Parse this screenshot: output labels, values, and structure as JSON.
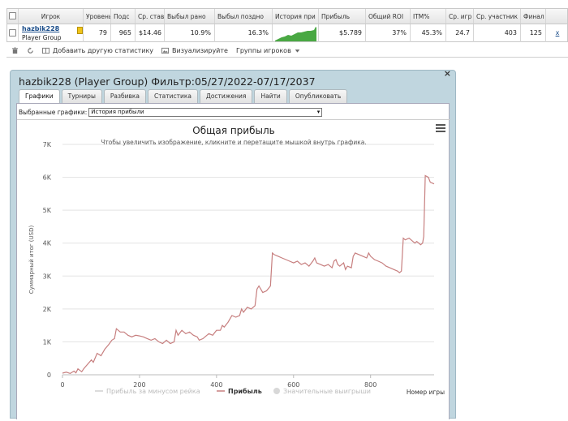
{
  "table": {
    "headers": [
      "Игрок",
      "Уровень",
      "Подс",
      "Ср. став",
      "Выбыл рано",
      "Выбыл поздно",
      "История при",
      "Прибыль",
      "Общий ROI",
      "ITM%",
      "Ср. игр",
      "Ср. участник",
      "Финал"
    ],
    "row": {
      "player_name": "hazbik228",
      "player_group": "Player Group",
      "level": "79",
      "count": "965",
      "avg_stake": "$14.46",
      "early": "10.9%",
      "late": "16.3%",
      "profit": "$5.789",
      "roi": "37%",
      "itm": "45.3%",
      "avg_games": "24.7",
      "avg_participants": "403",
      "final": "125",
      "remove": "x"
    }
  },
  "toolbar": {
    "add_stat": "Добавить другую статистику",
    "visualize": "Визуализируйте",
    "player_groups": "Группы игроков"
  },
  "panel": {
    "title": "hazbik228 (Player Group) Фильтр:05/27/2022-07/17/2037",
    "close": "×",
    "tabs": [
      "Графики",
      "Турниры",
      "Разбивка",
      "Статистика",
      "Достижения",
      "Найти",
      "Опубликовать"
    ],
    "select_label": "Выбранные графики:",
    "select_value": "История прибыли"
  },
  "chart_data": {
    "type": "line",
    "title": "Общая прибыль",
    "subtitle": "Чтобы увеличить изображение, кликните и перетащите мышкой внутрь графика.",
    "xlabel": "Номер игры",
    "ylabel": "Суммарный итог (USD)",
    "xlim": [
      0,
      965
    ],
    "ylim": [
      0,
      7000
    ],
    "x_ticks": [
      "0",
      "200",
      "400",
      "600",
      "800"
    ],
    "y_ticks": [
      "0",
      "1K",
      "2K",
      "3K",
      "4K",
      "5K",
      "6K",
      "7K"
    ],
    "legend": [
      "Прибыль за минусом рейка",
      "Прибыль",
      "Значительные выигрыши"
    ],
    "legend_placement": "bottom",
    "color": "#c77f7f",
    "series": [
      {
        "name": "Прибыль",
        "points": [
          [
            0,
            50
          ],
          [
            10,
            80
          ],
          [
            20,
            40
          ],
          [
            30,
            110
          ],
          [
            35,
            60
          ],
          [
            40,
            180
          ],
          [
            50,
            90
          ],
          [
            55,
            180
          ],
          [
            60,
            250
          ],
          [
            75,
            450
          ],
          [
            80,
            380
          ],
          [
            90,
            650
          ],
          [
            100,
            580
          ],
          [
            110,
            780
          ],
          [
            120,
            920
          ],
          [
            128,
            1050
          ],
          [
            135,
            1100
          ],
          [
            140,
            1400
          ],
          [
            150,
            1300
          ],
          [
            160,
            1300
          ],
          [
            170,
            1200
          ],
          [
            180,
            1150
          ],
          [
            190,
            1200
          ],
          [
            200,
            1180
          ],
          [
            210,
            1150
          ],
          [
            220,
            1100
          ],
          [
            230,
            1050
          ],
          [
            240,
            1100
          ],
          [
            250,
            1000
          ],
          [
            260,
            950
          ],
          [
            270,
            1050
          ],
          [
            280,
            950
          ],
          [
            290,
            1000
          ],
          [
            295,
            1350
          ],
          [
            300,
            1200
          ],
          [
            310,
            1350
          ],
          [
            320,
            1250
          ],
          [
            330,
            1300
          ],
          [
            340,
            1200
          ],
          [
            350,
            1150
          ],
          [
            355,
            1050
          ],
          [
            365,
            1100
          ],
          [
            370,
            1150
          ],
          [
            380,
            1250
          ],
          [
            390,
            1200
          ],
          [
            400,
            1350
          ],
          [
            410,
            1350
          ],
          [
            415,
            1500
          ],
          [
            420,
            1450
          ],
          [
            430,
            1600
          ],
          [
            440,
            1800
          ],
          [
            450,
            1750
          ],
          [
            460,
            1800
          ],
          [
            465,
            2000
          ],
          [
            470,
            1900
          ],
          [
            480,
            2050
          ],
          [
            490,
            2000
          ],
          [
            500,
            2100
          ],
          [
            505,
            2600
          ],
          [
            510,
            2700
          ],
          [
            520,
            2500
          ],
          [
            530,
            2550
          ],
          [
            540,
            2700
          ],
          [
            545,
            3700
          ],
          [
            550,
            3650
          ],
          [
            560,
            3600
          ],
          [
            570,
            3550
          ],
          [
            580,
            3500
          ],
          [
            590,
            3450
          ],
          [
            600,
            3400
          ],
          [
            610,
            3450
          ],
          [
            620,
            3350
          ],
          [
            630,
            3400
          ],
          [
            640,
            3300
          ],
          [
            650,
            3450
          ],
          [
            655,
            3550
          ],
          [
            660,
            3400
          ],
          [
            670,
            3350
          ],
          [
            680,
            3300
          ],
          [
            690,
            3350
          ],
          [
            700,
            3250
          ],
          [
            705,
            3450
          ],
          [
            710,
            3500
          ],
          [
            715,
            3350
          ],
          [
            720,
            3300
          ],
          [
            730,
            3400
          ],
          [
            735,
            3200
          ],
          [
            740,
            3300
          ],
          [
            750,
            3250
          ],
          [
            755,
            3600
          ],
          [
            760,
            3700
          ],
          [
            770,
            3650
          ],
          [
            780,
            3600
          ],
          [
            790,
            3550
          ],
          [
            795,
            3700
          ],
          [
            800,
            3600
          ],
          [
            810,
            3500
          ],
          [
            820,
            3450
          ],
          [
            830,
            3400
          ],
          [
            840,
            3300
          ],
          [
            850,
            3250
          ],
          [
            860,
            3200
          ],
          [
            870,
            3150
          ],
          [
            875,
            3100
          ],
          [
            880,
            3150
          ],
          [
            885,
            4150
          ],
          [
            890,
            4100
          ],
          [
            900,
            4150
          ],
          [
            910,
            4050
          ],
          [
            915,
            4000
          ],
          [
            920,
            4050
          ],
          [
            930,
            3950
          ],
          [
            935,
            4000
          ],
          [
            938,
            4200
          ],
          [
            942,
            6050
          ],
          [
            950,
            6000
          ],
          [
            955,
            5850
          ],
          [
            965,
            5800
          ]
        ]
      }
    ]
  },
  "colors": {
    "panel_bg": "#c0d6df",
    "link": "#1a4d8a",
    "line": "#c77f7f",
    "sparkline": "#49a843"
  }
}
